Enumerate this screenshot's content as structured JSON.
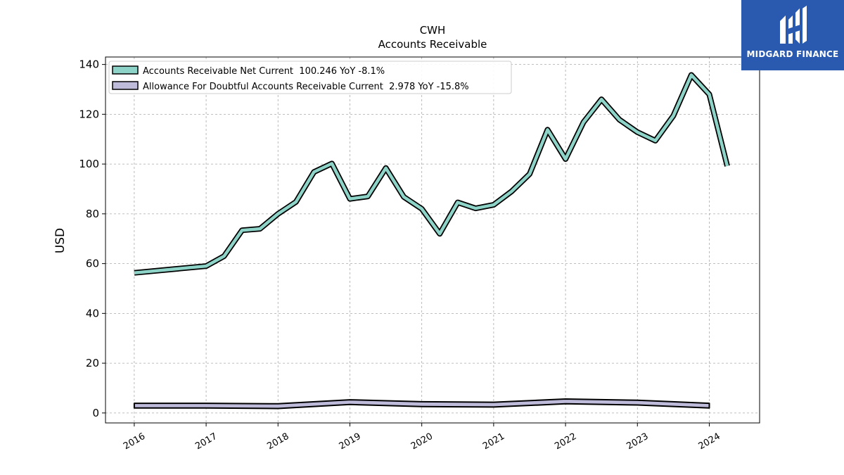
{
  "brand": {
    "name": "MIDGARD FINANCE",
    "color": "#2a5ab0"
  },
  "chart_data": {
    "type": "line",
    "title": "CWH",
    "subtitle": "Accounts Receivable",
    "ylabel": "USD",
    "xlabel": "",
    "ylim": [
      -4,
      143
    ],
    "xlim": [
      2015.6,
      2024.7
    ],
    "yticks": [
      0,
      20,
      40,
      60,
      80,
      100,
      120,
      140
    ],
    "xticks": [
      2016,
      2017,
      2018,
      2019,
      2020,
      2021,
      2022,
      2023,
      2024
    ],
    "grid": true,
    "legend_position": "top-left",
    "series": [
      {
        "name": "Accounts Receivable Net Current  100.246 YoY -8.1%",
        "color": "#8dd3c7",
        "x": [
          2016.0,
          2017.0,
          2017.25,
          2017.5,
          2017.75,
          2018.0,
          2018.25,
          2018.5,
          2018.75,
          2019.0,
          2019.25,
          2019.5,
          2019.75,
          2020.0,
          2020.25,
          2020.5,
          2020.75,
          2021.0,
          2021.25,
          2021.5,
          2021.75,
          2022.0,
          2022.25,
          2022.5,
          2022.75,
          2023.0,
          2023.25,
          2023.5,
          2023.75,
          2024.0,
          2024.25
        ],
        "y": [
          56.3,
          59.0,
          63.0,
          73.4,
          74.0,
          80.0,
          84.8,
          96.8,
          100.2,
          86.0,
          87.0,
          98.4,
          86.8,
          82.0,
          72.0,
          84.6,
          82.2,
          83.6,
          89.0,
          96.0,
          113.8,
          102.0,
          116.8,
          126.0,
          117.8,
          112.8,
          109.4,
          119.4,
          135.8,
          128.0,
          99.2
        ]
      },
      {
        "name": "Allowance For Doubtful Accounts Receivable Current  2.978 YoY -15.8%",
        "color": "#bebada",
        "x": [
          2016.0,
          2017.0,
          2018.0,
          2019.0,
          2020.0,
          2021.0,
          2022.0,
          2023.0,
          2024.0
        ],
        "upper": [
          3.9,
          3.9,
          3.7,
          5.3,
          4.5,
          4.3,
          5.6,
          5.1,
          3.9
        ],
        "lower": [
          2.0,
          2.0,
          1.8,
          3.4,
          2.6,
          2.4,
          3.7,
          3.2,
          2.0
        ]
      }
    ]
  }
}
